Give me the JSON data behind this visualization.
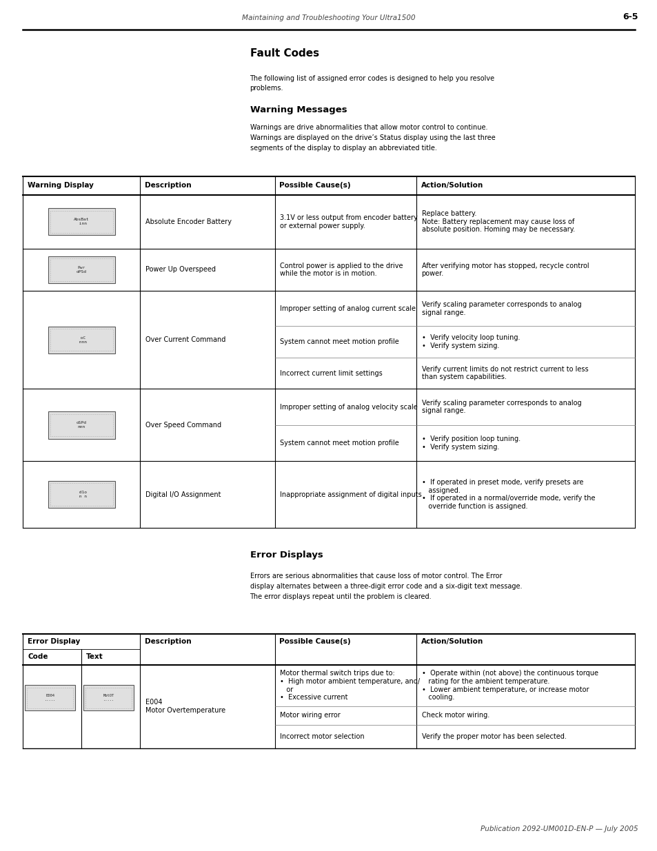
{
  "page_header_left": "Maintaining and Troubleshooting Your Ultra1500",
  "page_header_right": "6-5",
  "title": "Fault Codes",
  "intro_text": "The following list of assigned error codes is designed to help you resolve\nproblems.",
  "section1_title": "Warning Messages",
  "section1_intro": "Warnings are drive abnormalities that allow motor control to continue.\nWarnings are displayed on the drive’s Status display using the last three\nsegments of the display to display an abbreviated title.",
  "warning_table_headers": [
    "Warning Display",
    "Description",
    "Possible Cause(s)",
    "Action/Solution"
  ],
  "section2_title": "Error Displays",
  "section2_intro": "Errors are serious abnormalities that cause loss of motor control. The Error\ndisplay alternates between a three-digit error code and a six-digit text message.\nThe error displays repeat until the problem is cleared.",
  "footer_text": "Publication 2092-UM001D-EN-P — July 2005",
  "bg_color": "#ffffff",
  "font_size_header": 7.5,
  "font_size_body": 7.0,
  "font_size_title": 11,
  "font_size_section": 9.5
}
